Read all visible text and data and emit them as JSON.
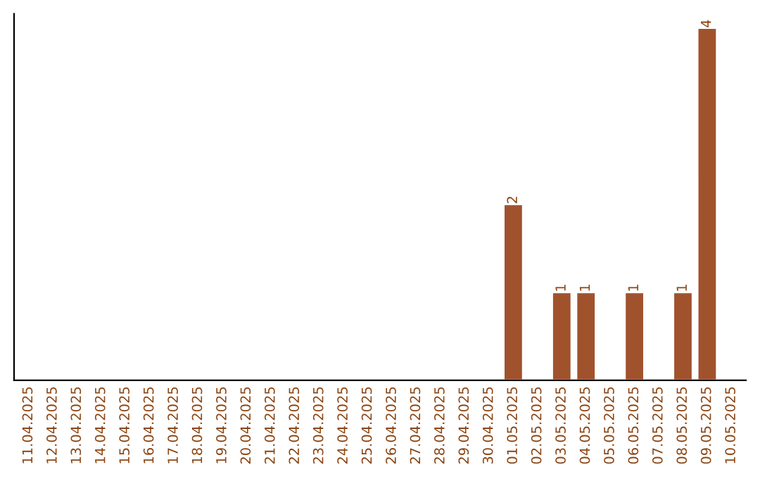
{
  "chart_data": {
    "type": "bar",
    "categories": [
      "11.04.2025",
      "12.04.2025",
      "13.04.2025",
      "14.04.2025",
      "15.04.2025",
      "16.04.2025",
      "17.04.2025",
      "18.04.2025",
      "19.04.2025",
      "20.04.2025",
      "21.04.2025",
      "22.04.2025",
      "23.04.2025",
      "24.04.2025",
      "25.04.2025",
      "26.04.2025",
      "27.04.2025",
      "28.04.2025",
      "29.04.2025",
      "30.04.2025",
      "01.05.2025",
      "02.05.2025",
      "03.05.2025",
      "04.05.2025",
      "05.05.2025",
      "06.05.2025",
      "07.05.2025",
      "08.05.2025",
      "09.05.2025",
      "10.05.2025"
    ],
    "values": [
      null,
      null,
      null,
      null,
      null,
      null,
      null,
      null,
      null,
      null,
      null,
      null,
      null,
      null,
      null,
      null,
      null,
      null,
      null,
      null,
      2,
      null,
      1,
      1,
      null,
      1,
      null,
      1,
      4,
      null
    ],
    "data_labels": true,
    "color": "#a0522d"
  }
}
